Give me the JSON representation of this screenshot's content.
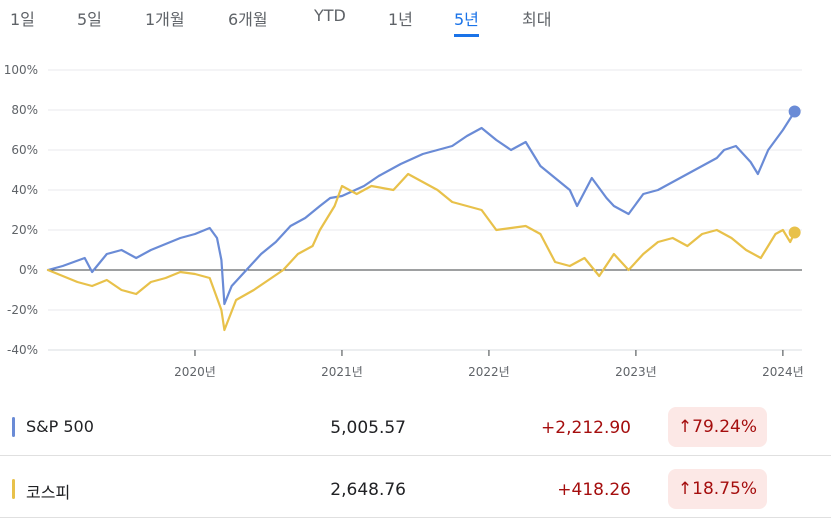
{
  "range_tabs": [
    {
      "label": "1일",
      "active": false
    },
    {
      "label": "5일",
      "active": false
    },
    {
      "label": "1개월",
      "active": false
    },
    {
      "label": "6개월",
      "active": false
    },
    {
      "label": "YTD",
      "active": false
    },
    {
      "label": "1년",
      "active": false
    },
    {
      "label": "5년",
      "active": true
    },
    {
      "label": "최대",
      "active": false
    }
  ],
  "chart_data": {
    "type": "line",
    "x_label": "",
    "y_label": "",
    "y_unit": "%",
    "ylim": [
      -40,
      100
    ],
    "y_ticks": [
      "100%",
      "80%",
      "60%",
      "40%",
      "20%",
      "0%",
      "-20%",
      "-40%"
    ],
    "x_ticks": [
      "2020년",
      "2021년",
      "2022년",
      "2023년",
      "2024년"
    ],
    "x_tick_dates": [
      2020.0,
      2021.0,
      2022.0,
      2023.0,
      2024.0
    ],
    "xlim": [
      2019.0,
      2024.13
    ],
    "grid": true,
    "zero_line": true,
    "series": [
      {
        "name": "S&P 500",
        "color": "#6a8bd6",
        "points": [
          [
            2019.0,
            0
          ],
          [
            2019.1,
            2
          ],
          [
            2019.25,
            6
          ],
          [
            2019.3,
            -1
          ],
          [
            2019.4,
            8
          ],
          [
            2019.5,
            10
          ],
          [
            2019.6,
            6
          ],
          [
            2019.7,
            10
          ],
          [
            2019.8,
            13
          ],
          [
            2019.9,
            16
          ],
          [
            2020.0,
            18
          ],
          [
            2020.1,
            21
          ],
          [
            2020.15,
            16
          ],
          [
            2020.18,
            5
          ],
          [
            2020.2,
            -17
          ],
          [
            2020.25,
            -8
          ],
          [
            2020.35,
            0
          ],
          [
            2020.45,
            8
          ],
          [
            2020.55,
            14
          ],
          [
            2020.65,
            22
          ],
          [
            2020.75,
            26
          ],
          [
            2020.85,
            32
          ],
          [
            2020.92,
            36
          ],
          [
            2021.0,
            37
          ],
          [
            2021.15,
            42
          ],
          [
            2021.25,
            47
          ],
          [
            2021.4,
            53
          ],
          [
            2021.55,
            58
          ],
          [
            2021.65,
            60
          ],
          [
            2021.75,
            62
          ],
          [
            2021.85,
            67
          ],
          [
            2021.95,
            71
          ],
          [
            2022.05,
            65
          ],
          [
            2022.15,
            60
          ],
          [
            2022.25,
            64
          ],
          [
            2022.35,
            52
          ],
          [
            2022.45,
            46
          ],
          [
            2022.55,
            40
          ],
          [
            2022.6,
            32
          ],
          [
            2022.7,
            46
          ],
          [
            2022.8,
            36
          ],
          [
            2022.85,
            32
          ],
          [
            2022.95,
            28
          ],
          [
            2023.05,
            38
          ],
          [
            2023.15,
            40
          ],
          [
            2023.25,
            44
          ],
          [
            2023.35,
            48
          ],
          [
            2023.45,
            52
          ],
          [
            2023.55,
            56
          ],
          [
            2023.6,
            60
          ],
          [
            2023.68,
            62
          ],
          [
            2023.78,
            54
          ],
          [
            2023.83,
            48
          ],
          [
            2023.9,
            60
          ],
          [
            2024.0,
            70
          ],
          [
            2024.08,
            79.24
          ]
        ]
      },
      {
        "name": "코스피",
        "color": "#e8c14a",
        "points": [
          [
            2019.0,
            0
          ],
          [
            2019.1,
            -3
          ],
          [
            2019.2,
            -6
          ],
          [
            2019.3,
            -8
          ],
          [
            2019.4,
            -5
          ],
          [
            2019.5,
            -10
          ],
          [
            2019.6,
            -12
          ],
          [
            2019.7,
            -6
          ],
          [
            2019.8,
            -4
          ],
          [
            2019.9,
            -1
          ],
          [
            2020.0,
            -2
          ],
          [
            2020.1,
            -4
          ],
          [
            2020.18,
            -20
          ],
          [
            2020.2,
            -30
          ],
          [
            2020.28,
            -15
          ],
          [
            2020.4,
            -10
          ],
          [
            2020.5,
            -5
          ],
          [
            2020.6,
            0
          ],
          [
            2020.7,
            8
          ],
          [
            2020.8,
            12
          ],
          [
            2020.85,
            20
          ],
          [
            2020.95,
            32
          ],
          [
            2021.0,
            42
          ],
          [
            2021.1,
            38
          ],
          [
            2021.2,
            42
          ],
          [
            2021.35,
            40
          ],
          [
            2021.45,
            48
          ],
          [
            2021.55,
            44
          ],
          [
            2021.65,
            40
          ],
          [
            2021.75,
            34
          ],
          [
            2021.85,
            32
          ],
          [
            2021.95,
            30
          ],
          [
            2022.05,
            20
          ],
          [
            2022.15,
            21
          ],
          [
            2022.25,
            22
          ],
          [
            2022.35,
            18
          ],
          [
            2022.45,
            4
          ],
          [
            2022.55,
            2
          ],
          [
            2022.65,
            6
          ],
          [
            2022.75,
            -3
          ],
          [
            2022.85,
            8
          ],
          [
            2022.95,
            0
          ],
          [
            2023.05,
            8
          ],
          [
            2023.15,
            14
          ],
          [
            2023.25,
            16
          ],
          [
            2023.35,
            12
          ],
          [
            2023.45,
            18
          ],
          [
            2023.55,
            20
          ],
          [
            2023.65,
            16
          ],
          [
            2023.75,
            10
          ],
          [
            2023.85,
            6
          ],
          [
            2023.95,
            18
          ],
          [
            2024.0,
            20
          ],
          [
            2024.05,
            14
          ],
          [
            2024.08,
            18.75
          ]
        ]
      }
    ]
  },
  "legend_rows": [
    {
      "name": "S&P 500",
      "color": "#6a8bd6",
      "price": "5,005.57",
      "change": "+2,212.90",
      "percent": "↑79.24%"
    },
    {
      "name": "코스피",
      "color": "#e8c14a",
      "price": "2,648.76",
      "change": "+418.26",
      "percent": "↑18.75%"
    }
  ]
}
